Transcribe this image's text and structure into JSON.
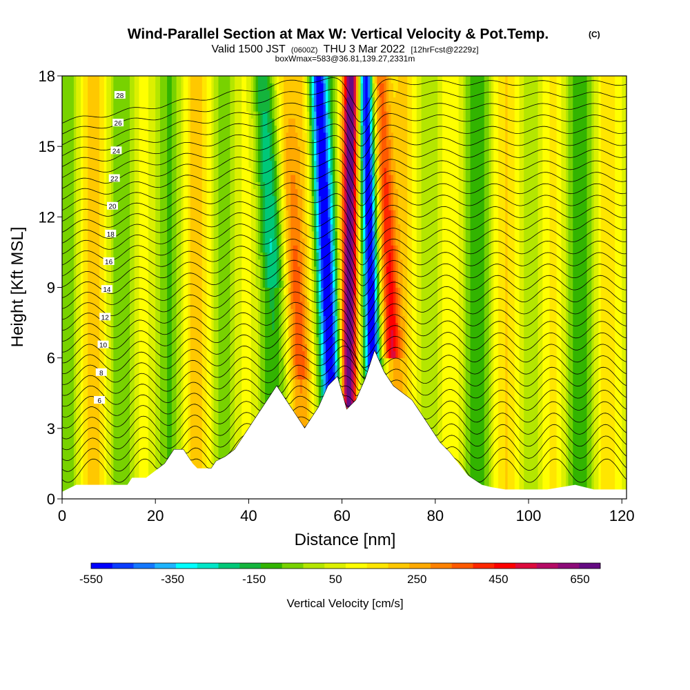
{
  "chart_data": {
    "type": "heatmap",
    "title": "Wind-Parallel Section at Max W: Vertical Velocity & Pot.Temp.",
    "title_suffix": "(C)",
    "subtitle_parts": [
      "Valid 1500 JST",
      "(0600Z)",
      "THU 3 Mar 2022",
      "[12hrFcst@2229z]"
    ],
    "subtitle2": "boxWmax=583@36.81,139.27,2331m",
    "xlabel": "Distance [nm]",
    "ylabel": "Height [Kft MSL]",
    "xlim": [
      0,
      121
    ],
    "ylim": [
      0,
      18
    ],
    "x_ticks": [
      0,
      20,
      40,
      60,
      80,
      100,
      120
    ],
    "y_ticks": [
      0,
      3,
      6,
      9,
      12,
      15,
      18
    ],
    "colorbar": {
      "label": "Vertical Velocity [cm/s]",
      "range": [
        -550,
        700
      ],
      "tick_labels": [
        -550,
        -350,
        -150,
        50,
        250,
        450,
        650
      ],
      "colors": [
        "#0000ff",
        "#0a3cff",
        "#1478ff",
        "#1eb4ff",
        "#00ffff",
        "#00e6c8",
        "#00c878",
        "#14b43c",
        "#32b400",
        "#78d200",
        "#b4e600",
        "#dcf000",
        "#ffff00",
        "#ffe600",
        "#ffc800",
        "#ffaa00",
        "#ff8200",
        "#ff5a00",
        "#ff2800",
        "#ff0000",
        "#dc0a3c",
        "#b40a64",
        "#8c0a78",
        "#640a82"
      ]
    },
    "theta_contour_labels": [
      6,
      8,
      10,
      12,
      14,
      16,
      18,
      20,
      22,
      24,
      26,
      28
    ],
    "terrain_height_kft": [
      [
        0,
        0.3
      ],
      [
        3,
        0.6
      ],
      [
        7,
        0.6
      ],
      [
        14,
        0.6
      ],
      [
        15,
        0.9
      ],
      [
        18,
        0.9
      ],
      [
        20,
        1.2
      ],
      [
        22,
        1.5
      ],
      [
        24,
        2.1
      ],
      [
        26,
        2.1
      ],
      [
        27,
        1.8
      ],
      [
        28,
        1.5
      ],
      [
        29,
        1.3
      ],
      [
        32,
        1.3
      ],
      [
        33,
        1.6
      ],
      [
        35,
        1.8
      ],
      [
        37,
        2.1
      ],
      [
        39,
        2.7
      ],
      [
        42,
        3.6
      ],
      [
        44,
        4.2
      ],
      [
        46,
        4.8
      ],
      [
        48,
        4.2
      ],
      [
        50,
        3.6
      ],
      [
        52,
        3.0
      ],
      [
        53,
        3.3
      ],
      [
        55,
        3.9
      ],
      [
        57,
        4.8
      ],
      [
        59,
        5.2
      ],
      [
        60,
        4.5
      ],
      [
        61,
        3.8
      ],
      [
        63,
        4.2
      ],
      [
        65,
        5.1
      ],
      [
        67,
        6.3
      ],
      [
        69,
        5.4
      ],
      [
        71,
        4.8
      ],
      [
        73,
        4.5
      ],
      [
        75,
        4.2
      ],
      [
        77,
        3.6
      ],
      [
        79,
        3.0
      ],
      [
        81,
        2.4
      ],
      [
        83,
        2.0
      ],
      [
        85,
        1.5
      ],
      [
        87,
        1.0
      ],
      [
        90,
        0.6
      ],
      [
        92,
        0.5
      ],
      [
        95,
        0.4
      ],
      [
        100,
        0.4
      ],
      [
        104,
        0.4
      ],
      [
        110,
        0.6
      ],
      [
        114,
        0.4
      ],
      [
        121,
        0.4
      ]
    ]
  }
}
